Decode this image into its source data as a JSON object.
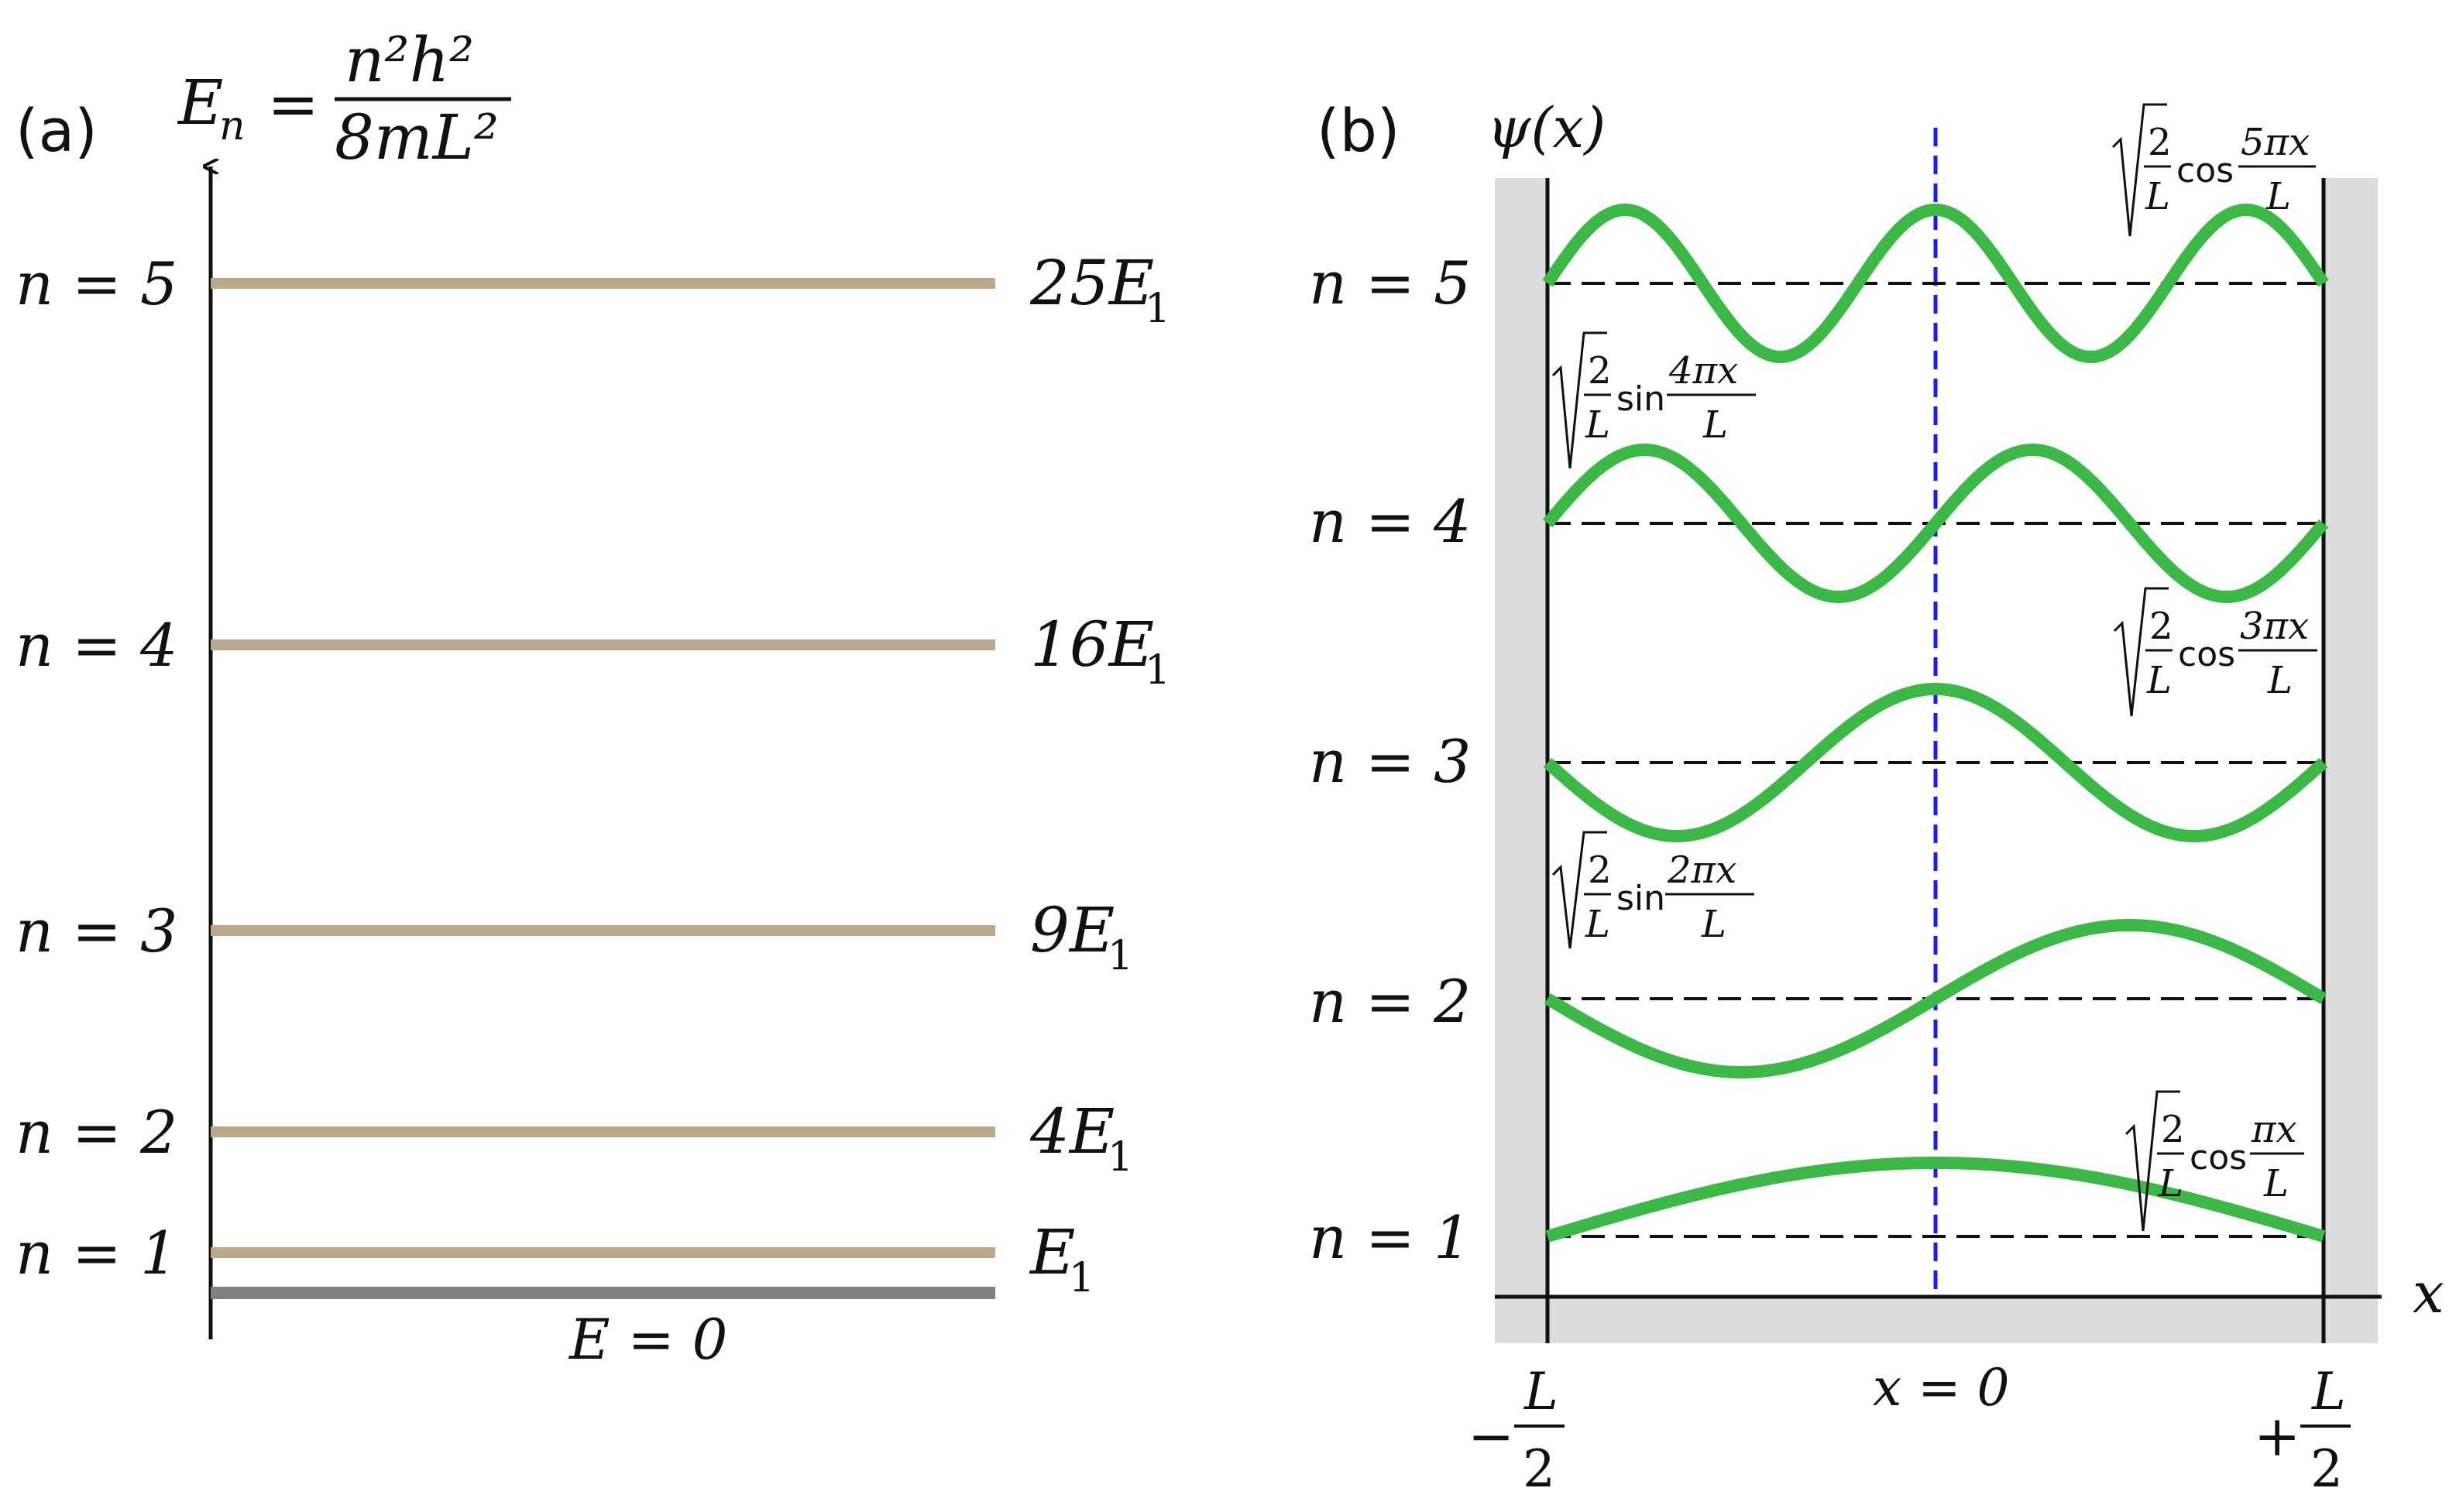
{
  "panel_a": {
    "label": "(a)",
    "formula": {
      "lhs_symbol": "E",
      "lhs_sub": "n",
      "num": "n²h²",
      "den": "8mL²"
    },
    "zero_label": "E = 0",
    "levels": [
      {
        "n_label": "n = 1",
        "energy_label": "E",
        "energy_sub": "1",
        "multiple": 1
      },
      {
        "n_label": "n = 2",
        "energy_label": "4E",
        "energy_sub": "1",
        "multiple": 4
      },
      {
        "n_label": "n = 3",
        "energy_label": "9E",
        "energy_sub": "1",
        "multiple": 9
      },
      {
        "n_label": "n = 4",
        "energy_label": "16E",
        "energy_sub": "1",
        "multiple": 16
      },
      {
        "n_label": "n = 5",
        "energy_label": "25E",
        "energy_sub": "1",
        "multiple": 25
      }
    ],
    "colors": {
      "level": "#b9a98a",
      "ground": "#808080",
      "axis": "#111111"
    }
  },
  "panel_b": {
    "label": "(b)",
    "axis_y_label": "ψ(x)",
    "axis_x_label": "x",
    "center_label": "x = 0",
    "left_edge": {
      "sign": "−",
      "num": "L",
      "den": "2"
    },
    "right_edge": {
      "sign": "+",
      "num": "L",
      "den": "2"
    },
    "states": [
      {
        "n_label": "n = 1",
        "func": "cos",
        "coef_num": "2",
        "coef_den": "L",
        "arg_num": "πx",
        "arg_den": "L",
        "quantum": 1
      },
      {
        "n_label": "n = 2",
        "func": "sin",
        "coef_num": "2",
        "coef_den": "L",
        "arg_num": "2πx",
        "arg_den": "L",
        "quantum": 2
      },
      {
        "n_label": "n = 3",
        "func": "cos",
        "coef_num": "2",
        "coef_den": "L",
        "arg_num": "3πx",
        "arg_den": "L",
        "quantum": 3
      },
      {
        "n_label": "n = 4",
        "func": "sin",
        "coef_num": "2",
        "coef_den": "L",
        "arg_num": "4πx",
        "arg_den": "L",
        "quantum": 4
      },
      {
        "n_label": "n = 5",
        "func": "cos",
        "coef_num": "2",
        "coef_den": "L",
        "arg_num": "5πx",
        "arg_den": "L",
        "quantum": 5
      }
    ],
    "colors": {
      "wave": "#3cb846",
      "wall": "#dcdcdc",
      "center_line": "#1a1aff",
      "baseline": "#111111"
    }
  }
}
